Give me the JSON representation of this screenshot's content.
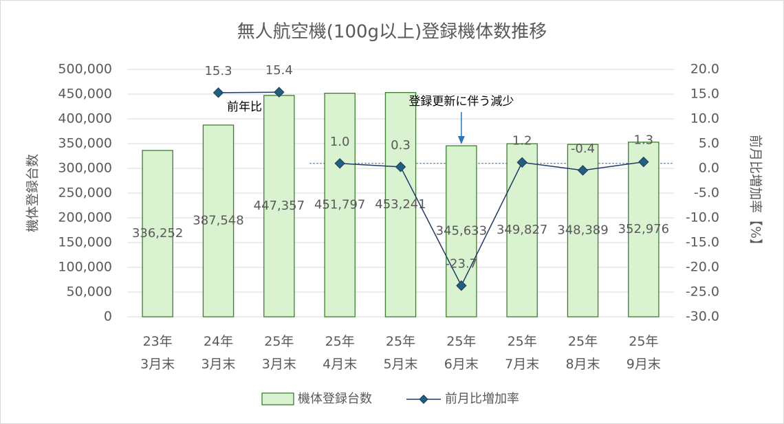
{
  "chart_data": {
    "type": "bar_line",
    "title": "無人航空機(100g以上)登録機体数推移",
    "y_label": "機体登録台数",
    "y2_label": "前月比増加率【%】",
    "categories": [
      "23年\n3月末",
      "24年\n3月末",
      "25年\n3月末",
      "25年\n4月末",
      "25年\n5月末",
      "25年\n6月末",
      "25年\n7月末",
      "25年\n8月末",
      "25年\n9月末"
    ],
    "series": [
      {
        "name": "機体登録台数",
        "kind": "bar",
        "color": "#d9f2d0",
        "edge_color": "#3b7d2f",
        "values": [
          336252,
          387548,
          447357,
          451797,
          453241,
          345633,
          349827,
          348389,
          352976
        ],
        "value_labels": [
          "336,252",
          "387,548",
          "447,357",
          "451,797",
          "453,241",
          "345,633",
          "349,827",
          "348,389",
          "352,976"
        ]
      },
      {
        "name": "前月比増加率",
        "kind": "line",
        "axis": "y2",
        "color": "#1f3864",
        "marker_color": "#215f7a",
        "values": [
          null,
          null,
          null,
          1.0,
          0.3,
          -23.7,
          1.2,
          -0.4,
          1.3
        ],
        "value_labels": [
          null,
          null,
          null,
          "1.0",
          "0.3",
          "-23.7",
          "1.2",
          "-0.4",
          "1.3"
        ]
      },
      {
        "kind": "line",
        "axis": "y2",
        "color": "#1f3864",
        "marker_color": "#215f7a",
        "values": [
          null,
          15.3,
          15.4,
          null,
          null,
          null,
          null,
          null,
          null
        ],
        "value_labels": [
          null,
          "15.3",
          "15.4",
          null,
          null,
          null,
          null,
          null,
          null
        ]
      }
    ],
    "ylim": [
      0,
      500000
    ],
    "yticks": [
      0,
      {
        "value": 50000,
        "label": "50,000"
      },
      {
        "value": 100000,
        "label": "100,000"
      },
      {
        "value": 150000,
        "label": "150,000"
      },
      {
        "value": 200000,
        "label": "200,000"
      },
      {
        "value": 250000,
        "label": "250,000"
      },
      {
        "value": 300000,
        "label": "300,000"
      },
      {
        "value": 350000,
        "label": "350,000"
      },
      {
        "value": 400000,
        "label": "400,000"
      },
      {
        "value": 450000,
        "label": "450,000"
      },
      {
        "value": 500000,
        "label": "500,000"
      }
    ],
    "y2lim": [
      -30,
      20
    ],
    "y2ticks": [
      {
        "value": -30,
        "label": "-30.0"
      },
      {
        "value": -25,
        "label": "-25.0"
      },
      {
        "value": -20,
        "label": "-20.0"
      },
      {
        "value": -15,
        "label": "-15.0"
      },
      {
        "value": -10,
        "label": "-10.0"
      },
      {
        "value": -5,
        "label": "-5.0"
      },
      {
        "value": 0,
        "label": "0.0"
      },
      {
        "value": 5,
        "label": "5.0"
      },
      {
        "value": 10,
        "label": "10.0"
      },
      {
        "value": 15,
        "label": "15.0"
      },
      {
        "value": 20,
        "label": "20.0"
      }
    ],
    "grid": true,
    "legend": "bottom",
    "reference_lines": [
      {
        "axis": "y2",
        "value": 1,
        "from_category": 3
      }
    ],
    "annotations": [
      {
        "text": "前年比",
        "category": 1
      },
      {
        "text": "登録更新に伴う減少",
        "category": 5
      }
    ]
  }
}
